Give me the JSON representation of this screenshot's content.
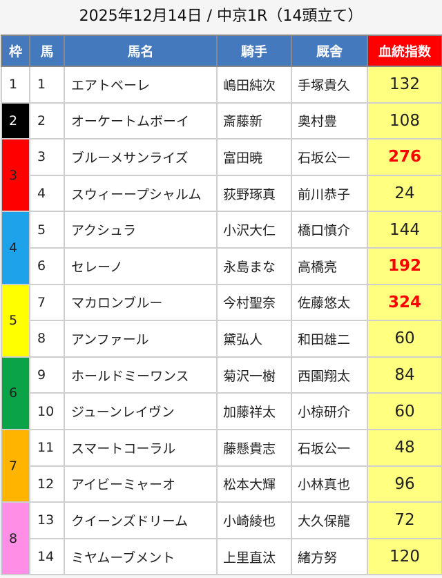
{
  "title": "2025年12月14日 / 中京1R（14頭立て）",
  "headers": {
    "waku": "枠",
    "uma": "馬",
    "name": "馬名",
    "jockey": "騎手",
    "trainer": "厩舎",
    "index": "血統指数"
  },
  "colors": {
    "header": "#4579bd",
    "index_header": "#ff0000",
    "index_bg": "#ffff80",
    "highlight": "#ff0000"
  },
  "waku": [
    {
      "n": "1",
      "bg": "#ffffff",
      "fg": "#222222",
      "rows": 1
    },
    {
      "n": "2",
      "bg": "#000000",
      "fg": "#ffffff",
      "rows": 1
    },
    {
      "n": "3",
      "bg": "#ff0000",
      "fg": "#222222",
      "rows": 2
    },
    {
      "n": "4",
      "bg": "#1ea3ea",
      "fg": "#222222",
      "rows": 2
    },
    {
      "n": "5",
      "bg": "#ffff00",
      "fg": "#222222",
      "rows": 2
    },
    {
      "n": "6",
      "bg": "#0aa348",
      "fg": "#222222",
      "rows": 2
    },
    {
      "n": "7",
      "bg": "#ffb400",
      "fg": "#222222",
      "rows": 2
    },
    {
      "n": "8",
      "bg": "#ff8ee6",
      "fg": "#222222",
      "rows": 2
    }
  ],
  "horses": [
    {
      "uma": "1",
      "name": "エアトベーレ",
      "jockey": "嶋田純次",
      "trainer": "手塚貴久",
      "index": "132",
      "highlight": false
    },
    {
      "uma": "2",
      "name": "オーケートムボーイ",
      "jockey": "斎藤新",
      "trainer": "奥村豊",
      "index": "108",
      "highlight": false
    },
    {
      "uma": "3",
      "name": "ブルーメサンライズ",
      "jockey": "富田暁",
      "trainer": "石坂公一",
      "index": "276",
      "highlight": true
    },
    {
      "uma": "4",
      "name": "スウィーープシャルム",
      "jockey": "荻野琢真",
      "trainer": "前川恭子",
      "index": "24",
      "highlight": false
    },
    {
      "uma": "5",
      "name": "アクシュラ",
      "jockey": "小沢大仁",
      "trainer": "橋口慎介",
      "index": "144",
      "highlight": false
    },
    {
      "uma": "6",
      "name": "セレーノ",
      "jockey": "永島まな",
      "trainer": "高橋亮",
      "index": "192",
      "highlight": true
    },
    {
      "uma": "7",
      "name": "マカロンブルー",
      "jockey": "今村聖奈",
      "trainer": "佐藤悠太",
      "index": "324",
      "highlight": true
    },
    {
      "uma": "8",
      "name": "アンファール",
      "jockey": "黛弘人",
      "trainer": "和田雄二",
      "index": "60",
      "highlight": false
    },
    {
      "uma": "9",
      "name": "ホールドミーワンス",
      "jockey": "菊沢一樹",
      "trainer": "西園翔太",
      "index": "84",
      "highlight": false
    },
    {
      "uma": "10",
      "name": "ジューンレイヴン",
      "jockey": "加藤祥太",
      "trainer": "小椋研介",
      "index": "60",
      "highlight": false
    },
    {
      "uma": "11",
      "name": "スマートコーラル",
      "jockey": "藤懸貴志",
      "trainer": "石坂公一",
      "index": "48",
      "highlight": false
    },
    {
      "uma": "12",
      "name": "アイビーミャーオ",
      "jockey": "松本大輝",
      "trainer": "小林真也",
      "index": "96",
      "highlight": false
    },
    {
      "uma": "13",
      "name": "クイーンズドリーム",
      "jockey": "小崎綾也",
      "trainer": "大久保龍",
      "index": "72",
      "highlight": false
    },
    {
      "uma": "14",
      "name": "ミヤムーブメント",
      "jockey": "上里直汰",
      "trainer": "緒方努",
      "index": "120",
      "highlight": false
    }
  ]
}
